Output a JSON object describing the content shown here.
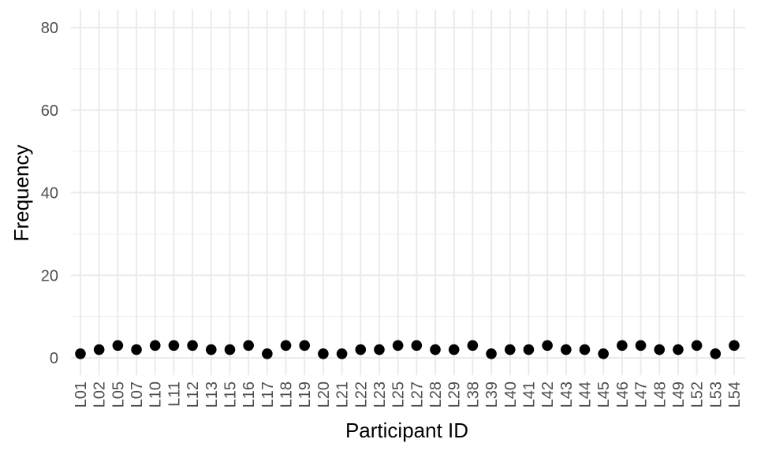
{
  "chart_data": {
    "type": "scatter",
    "xlabel": "Participant ID",
    "ylabel": "Frequency",
    "ylim": [
      -4,
      83
    ],
    "y_ticks": [
      0,
      20,
      40,
      60,
      80
    ],
    "grid": true,
    "legend": "none",
    "colors": {
      "point": "#000000",
      "grid": "#ebebeb",
      "tick_text": "#4d4d4d"
    },
    "categories": [
      "L01",
      "L02",
      "L05",
      "L07",
      "L10",
      "L11",
      "L12",
      "L13",
      "L15",
      "L16",
      "L17",
      "L18",
      "L19",
      "L20",
      "L21",
      "L22",
      "L23",
      "L25",
      "L27",
      "L28",
      "L29",
      "L38",
      "L39",
      "L40",
      "L41",
      "L42",
      "L43",
      "L44",
      "L45",
      "L46",
      "L47",
      "L48",
      "L49",
      "L52",
      "L53",
      "L54"
    ],
    "values": [
      1,
      2,
      3,
      2,
      3,
      3,
      3,
      2,
      2,
      3,
      1,
      3,
      3,
      1,
      1,
      2,
      2,
      3,
      3,
      2,
      2,
      3,
      1,
      2,
      2,
      3,
      2,
      2,
      1,
      3,
      3,
      2,
      2,
      3,
      1,
      3
    ]
  }
}
